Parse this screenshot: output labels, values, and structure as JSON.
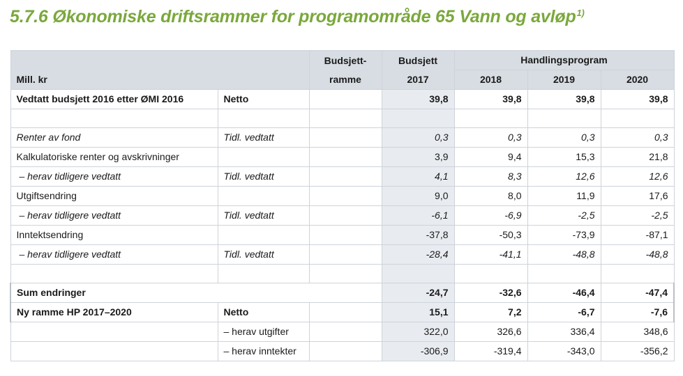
{
  "page": {
    "title": "5.7.6 Økonomiske driftsrammer for programområde 65 Vann og avløp",
    "title_footnote": "1)"
  },
  "table": {
    "header": {
      "unit": "Mill. kr",
      "budsjettramme_line1": "Budsjett-",
      "budsjettramme_line2": "ramme",
      "budsjett_line1": "Budsjett",
      "budsjett_line2": "2017",
      "handlingsprogram": "Handlingsprogram",
      "years": [
        "2018",
        "2019",
        "2020"
      ]
    },
    "rows": [
      {
        "label": "Vedtatt budsjett 2016 etter ØMI 2016",
        "type": "Netto",
        "b2017": "39,8",
        "y2018": "39,8",
        "y2019": "39,8",
        "y2020": "39,8"
      },
      {
        "label": "",
        "type": "",
        "b2017": "",
        "y2018": "",
        "y2019": "",
        "y2020": ""
      },
      {
        "label": "Renter av fond",
        "type": "Tidl. vedtatt",
        "b2017": "0,3",
        "y2018": "0,3",
        "y2019": "0,3",
        "y2020": "0,3"
      },
      {
        "label": "Kalkulatoriske renter og avskrivninger",
        "type": "",
        "b2017": "3,9",
        "y2018": "9,4",
        "y2019": "15,3",
        "y2020": "21,8"
      },
      {
        "label": "– herav tidligere vedtatt",
        "type": "Tidl. vedtatt",
        "b2017": "4,1",
        "y2018": "8,3",
        "y2019": "12,6",
        "y2020": "12,6"
      },
      {
        "label": "Utgiftsendring",
        "type": "",
        "b2017": "9,0",
        "y2018": "8,0",
        "y2019": "11,9",
        "y2020": "17,6"
      },
      {
        "label": "– herav tidligere vedtatt",
        "type": "Tidl. vedtatt",
        "b2017": "-6,1",
        "y2018": "-6,9",
        "y2019": "-2,5",
        "y2020": "-2,5"
      },
      {
        "label": "Inntektsendring",
        "type": "",
        "b2017": "-37,8",
        "y2018": "-50,3",
        "y2019": "-73,9",
        "y2020": "-87,1"
      },
      {
        "label": "– herav tidligere vedtatt",
        "type": "Tidl. vedtatt",
        "b2017": "-28,4",
        "y2018": "-41,1",
        "y2019": "-48,8",
        "y2020": "-48,8"
      },
      {
        "label": "",
        "type": "",
        "b2017": "",
        "y2018": "",
        "y2019": "",
        "y2020": ""
      },
      {
        "label": "Sum endringer",
        "type": "",
        "b2017": "-24,7",
        "y2018": "-32,6",
        "y2019": "-46,4",
        "y2020": "-47,4"
      },
      {
        "label": "Ny ramme HP 2017–2020",
        "type": "Netto",
        "b2017": "15,1",
        "y2018": "7,2",
        "y2019": "-6,7",
        "y2020": "-7,6"
      },
      {
        "label": "",
        "type": "– herav utgifter",
        "b2017": "322,0",
        "y2018": "326,6",
        "y2019": "336,4",
        "y2020": "348,6"
      },
      {
        "label": "",
        "type": "– herav inntekter",
        "b2017": "-306,9",
        "y2018": "-319,4",
        "y2019": "-343,0",
        "y2020": "-356,2"
      }
    ]
  }
}
